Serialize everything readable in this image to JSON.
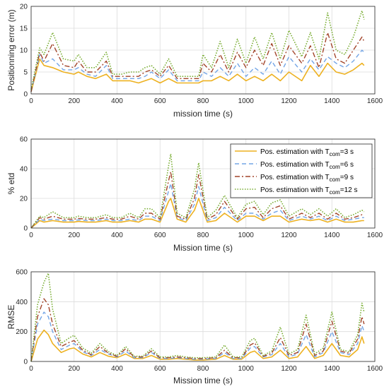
{
  "colors": {
    "series_3s": "#EDB120",
    "series_6s": "#73A5E6",
    "series_9s": "#A2442A",
    "series_12s": "#77AC30",
    "grid": "#dcdcdc",
    "axis": "#262626"
  },
  "chart_data": [
    {
      "type": "line",
      "title": "",
      "xlabel": "mission time (s)",
      "ylabel": "Positionning error (m)",
      "xlim": [
        0,
        1600
      ],
      "ylim": [
        0,
        20
      ],
      "xticks": [
        "0",
        "200",
        "400",
        "600",
        "800",
        "1000",
        "1200",
        "1400",
        "1600"
      ],
      "yticks": [
        "0",
        "5",
        "10",
        "15",
        "20"
      ],
      "grid": true,
      "x": [
        0,
        40,
        60,
        100,
        150,
        200,
        220,
        260,
        300,
        350,
        380,
        420,
        460,
        500,
        530,
        560,
        600,
        640,
        680,
        720,
        780,
        800,
        840,
        880,
        920,
        960,
        1000,
        1040,
        1080,
        1120,
        1160,
        1200,
        1260,
        1300,
        1340,
        1380,
        1420,
        1460,
        1500,
        1540,
        1550
      ],
      "series": [
        {
          "name": "3 s",
          "values": [
            0.5,
            8,
            6.5,
            6,
            5,
            4.5,
            5,
            4,
            3.5,
            4.5,
            3,
            3,
            3,
            2.5,
            3,
            3.5,
            2.5,
            3.5,
            2.5,
            2.5,
            2.5,
            3,
            3,
            4,
            3,
            4.5,
            3,
            4,
            3,
            4.5,
            3,
            5,
            3,
            6.5,
            4,
            7,
            5,
            4.5,
            5.5,
            7,
            6.5
          ]
        },
        {
          "name": "6 s",
          "values": [
            0.5,
            9,
            7,
            8,
            5.5,
            5.5,
            6,
            4.5,
            4,
            6.5,
            3.5,
            3.5,
            3.5,
            3.5,
            4,
            5,
            3.5,
            5.5,
            3,
            3,
            3,
            5,
            4,
            6,
            4,
            7,
            4,
            6,
            4.5,
            7.5,
            4.5,
            8.5,
            5,
            8,
            5.5,
            8.5,
            7,
            6,
            7.5,
            10,
            9.5
          ]
        },
        {
          "name": "9 s",
          "values": [
            0.5,
            9.5,
            7.5,
            11.5,
            6.5,
            6,
            7.5,
            5,
            5,
            7.5,
            4,
            4,
            4,
            4,
            5,
            5.5,
            4,
            6.5,
            3.5,
            3.5,
            3.5,
            7,
            5,
            9,
            5,
            9.5,
            6,
            10,
            6.5,
            11.5,
            6.5,
            11,
            7,
            11,
            6,
            14,
            8,
            7,
            10,
            13,
            12
          ]
        },
        {
          "name": "12 s",
          "values": [
            1,
            10.5,
            9,
            14,
            8,
            7.5,
            9,
            6,
            6,
            9.5,
            4.5,
            4.5,
            5,
            5,
            6,
            6.5,
            4.5,
            8,
            4,
            4,
            4,
            9,
            6,
            12,
            6,
            12.5,
            7,
            13,
            8,
            14,
            8,
            14.5,
            8.5,
            14,
            8,
            18.5,
            10,
            9,
            13,
            19,
            17
          ]
        }
      ]
    },
    {
      "type": "line",
      "title": "",
      "xlabel": "Mission time (s)",
      "ylabel": "% etd",
      "xlim": [
        0,
        1600
      ],
      "ylim": [
        0,
        60
      ],
      "xticks": [
        "0",
        "200",
        "400",
        "600",
        "800",
        "1000",
        "1200",
        "1400",
        "1600"
      ],
      "yticks": [
        "0",
        "20",
        "40",
        "60"
      ],
      "grid": true,
      "legend": "top-right",
      "x": [
        0,
        40,
        60,
        100,
        150,
        200,
        220,
        260,
        300,
        350,
        380,
        420,
        460,
        500,
        530,
        560,
        600,
        640,
        650,
        680,
        720,
        760,
        780,
        820,
        860,
        900,
        960,
        1000,
        1040,
        1080,
        1120,
        1160,
        1200,
        1260,
        1300,
        1340,
        1380,
        1420,
        1460,
        1500,
        1540,
        1550
      ],
      "series": [
        {
          "name": "Pos. estimation with T_com=3 s",
          "values": [
            0,
            5,
            4,
            5,
            4,
            4,
            4.5,
            4,
            4,
            5,
            4,
            4,
            5,
            4,
            6,
            6,
            4,
            18,
            20,
            6,
            4,
            12,
            20,
            4,
            5,
            10,
            4,
            8,
            8,
            5,
            8,
            8,
            4,
            6,
            5,
            6,
            4,
            6,
            4,
            4,
            5,
            5
          ]
        },
        {
          "name": "Pos. estimation with T_com=6 s",
          "values": [
            0,
            6,
            5,
            6,
            5,
            5,
            5.5,
            5,
            5,
            6,
            5,
            5,
            6,
            5,
            8,
            8,
            5,
            25,
            30,
            7,
            5,
            16,
            28,
            5,
            7,
            14,
            5,
            10,
            10,
            6,
            10,
            12,
            5,
            8,
            6,
            8,
            5,
            8,
            5,
            6,
            7,
            7
          ]
        },
        {
          "name": "Pos. estimation with T_com=9 s",
          "values": [
            0,
            7,
            6,
            8,
            6,
            6,
            6.5,
            6,
            6,
            7,
            6,
            6,
            8,
            6,
            10,
            10,
            6,
            32,
            38,
            8,
            6,
            20,
            36,
            6,
            9,
            18,
            6,
            13,
            14,
            7,
            13,
            15,
            6,
            10,
            7,
            10,
            6,
            10,
            6,
            7,
            9,
            9
          ]
        },
        {
          "name": "Pos. estimation with T_com=12 s",
          "values": [
            0,
            8,
            7,
            11,
            7,
            7,
            8,
            7,
            7,
            9,
            7,
            7,
            10,
            7,
            13,
            13,
            7,
            42,
            50,
            10,
            7,
            26,
            44,
            7,
            12,
            22,
            7,
            16,
            18,
            9,
            17,
            19,
            8,
            13,
            9,
            13,
            8,
            13,
            7,
            9,
            12,
            11
          ]
        }
      ]
    },
    {
      "type": "line",
      "title": "",
      "xlabel": "Mission time (s)",
      "ylabel": "RMSE",
      "xlim": [
        0,
        1600
      ],
      "ylim": [
        0,
        600
      ],
      "xticks": [
        "0",
        "200",
        "400",
        "600",
        "800",
        "1000",
        "1200",
        "1400",
        "1600"
      ],
      "yticks": [
        "0",
        "200",
        "400",
        "600"
      ],
      "grid": true,
      "x": [
        0,
        30,
        60,
        80,
        100,
        140,
        180,
        200,
        240,
        280,
        320,
        360,
        400,
        440,
        480,
        520,
        560,
        600,
        640,
        680,
        720,
        760,
        800,
        860,
        900,
        940,
        980,
        1020,
        1040,
        1080,
        1120,
        1160,
        1200,
        1240,
        1280,
        1320,
        1360,
        1400,
        1440,
        1480,
        1520,
        1540,
        1550
      ],
      "series": [
        {
          "name": "3 s",
          "values": [
            0,
            150,
            210,
            180,
            120,
            60,
            85,
            90,
            50,
            30,
            60,
            35,
            25,
            50,
            20,
            20,
            40,
            15,
            15,
            20,
            15,
            10,
            10,
            15,
            40,
            15,
            15,
            60,
            70,
            20,
            30,
            75,
            20,
            30,
            100,
            20,
            40,
            120,
            40,
            30,
            80,
            165,
            120
          ]
        },
        {
          "name": "6 s",
          "values": [
            0,
            250,
            330,
            300,
            200,
            80,
            110,
            120,
            65,
            40,
            80,
            50,
            30,
            70,
            25,
            25,
            60,
            20,
            20,
            25,
            20,
            15,
            15,
            20,
            60,
            20,
            20,
            90,
            100,
            30,
            45,
            120,
            30,
            50,
            180,
            30,
            60,
            200,
            60,
            45,
            120,
            240,
            200
          ]
        },
        {
          "name": "9 s",
          "values": [
            0,
            300,
            420,
            380,
            250,
            100,
            130,
            140,
            75,
            45,
            100,
            55,
            35,
            85,
            30,
            30,
            70,
            25,
            25,
            30,
            25,
            20,
            20,
            25,
            75,
            25,
            25,
            110,
            125,
            35,
            55,
            160,
            40,
            60,
            250,
            40,
            70,
            270,
            70,
            55,
            150,
            300,
            250
          ]
        },
        {
          "name": "12 s",
          "values": [
            0,
            380,
            530,
            590,
            350,
            120,
            160,
            175,
            90,
            55,
            120,
            65,
            40,
            100,
            35,
            35,
            85,
            30,
            30,
            40,
            30,
            25,
            25,
            30,
            110,
            30,
            30,
            140,
            155,
            40,
            70,
            230,
            50,
            80,
            310,
            50,
            90,
            330,
            80,
            65,
            180,
            390,
            330
          ]
        }
      ]
    }
  ]
}
